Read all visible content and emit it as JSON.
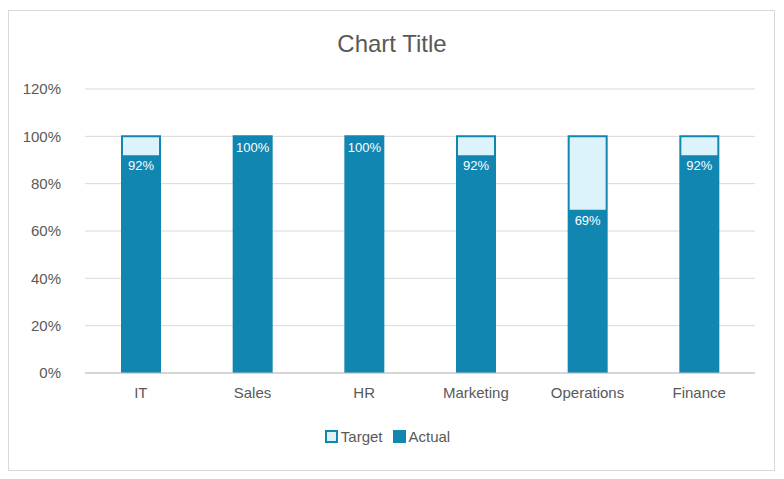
{
  "chart_data": {
    "type": "bar",
    "title": "Chart Title",
    "categories": [
      "IT",
      "Sales",
      "HR",
      "Marketing",
      "Operations",
      "Finance"
    ],
    "series": [
      {
        "name": "Target",
        "color": "#1186b1",
        "values": [
          100,
          100,
          100,
          100,
          100,
          100
        ]
      },
      {
        "name": "Actual",
        "color": "#1186b1",
        "values": [
          92,
          100,
          100,
          92,
          69,
          92
        ],
        "data_labels": true,
        "value_labels": [
          "92%",
          "100%",
          "100%",
          "92%",
          "69%",
          "92%"
        ]
      }
    ],
    "ylim": [
      0,
      120
    ],
    "yticks": [
      {
        "value": 0,
        "label": "0%"
      },
      {
        "value": 20,
        "label": "20%"
      },
      {
        "value": 40,
        "label": "40%"
      },
      {
        "value": 60,
        "label": "60%"
      },
      {
        "value": 80,
        "label": "80%"
      },
      {
        "value": 100,
        "label": "100%"
      },
      {
        "value": 120,
        "label": "120%"
      }
    ],
    "grid": true,
    "legend": "bottom"
  }
}
